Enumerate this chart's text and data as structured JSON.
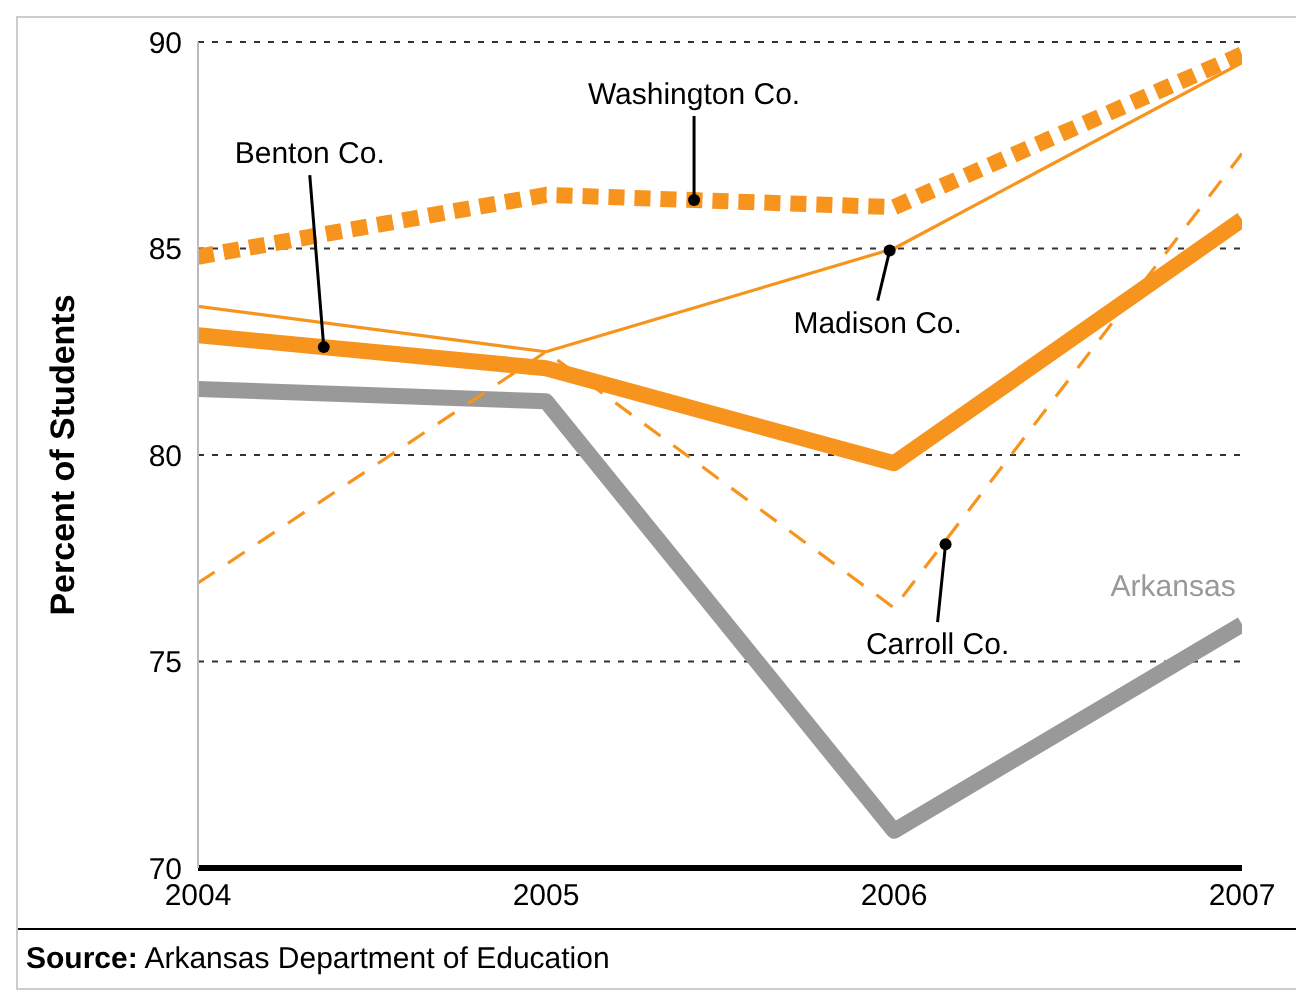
{
  "chart_data": {
    "type": "line",
    "x": [
      2004,
      2005,
      2006,
      2007
    ],
    "series": [
      {
        "name": "Arkansas",
        "color": "#999999",
        "values": [
          81.6,
          81.3,
          70.9,
          75.9
        ]
      },
      {
        "name": "Carroll Co.",
        "color": "#f7941d",
        "values": [
          76.9,
          82.5,
          76.3,
          87.3
        ],
        "line_style": "dashed"
      },
      {
        "name": "Madison Co.",
        "color": "#f7941d",
        "values": [
          83.6,
          82.5,
          85.0,
          89.5
        ]
      },
      {
        "name": "Benton Co.",
        "color": "#f7941d",
        "values": [
          82.9,
          82.1,
          79.8,
          85.7
        ]
      },
      {
        "name": "Washington Co.",
        "color": "#f7941d",
        "values": [
          84.8,
          86.3,
          86.0,
          89.7
        ],
        "line_style": "dotted"
      }
    ],
    "ylabel": "Percent of Students",
    "xlim": [
      2004,
      2007
    ],
    "xticks": [
      2004,
      2005,
      2006,
      2007
    ],
    "ylim": [
      70,
      90
    ],
    "yticks": [
      70,
      75,
      80,
      85,
      90
    ],
    "grid": "y",
    "marker": "none",
    "annotations": [
      "Source: Arkansas Department of Education"
    ]
  }
}
